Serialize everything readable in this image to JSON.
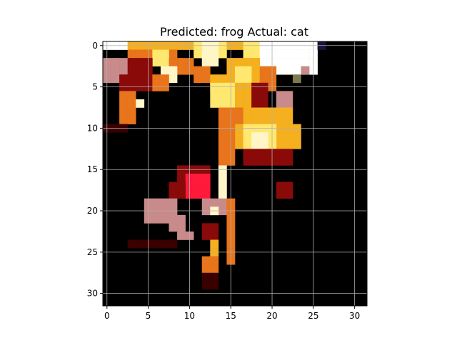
{
  "figure": {
    "title": "Predicted: frog Actual: cat",
    "x_ticks": [
      "0",
      "5",
      "10",
      "15",
      "20",
      "25",
      "30"
    ],
    "y_ticks": [
      "0",
      "5",
      "10",
      "15",
      "20",
      "25",
      "30"
    ],
    "grid": true
  },
  "image": {
    "description_type": "32x32 pixel image shown with a hot/afmhot-style colormap",
    "grid_size": [
      32,
      32
    ],
    "palette": {
      "background": "#000000",
      "dark_red": "#3a0000",
      "red": "#8a0a0a",
      "bright_red": "#ff1a3c",
      "orange": "#e8741c",
      "gold": "#f5b020",
      "yellow": "#ffe870",
      "pale": "#fff6c8",
      "white": "#ffffff",
      "pinkish": "#c88a8a",
      "navy": "#14143c",
      "olive": "#7a7a50"
    }
  }
}
